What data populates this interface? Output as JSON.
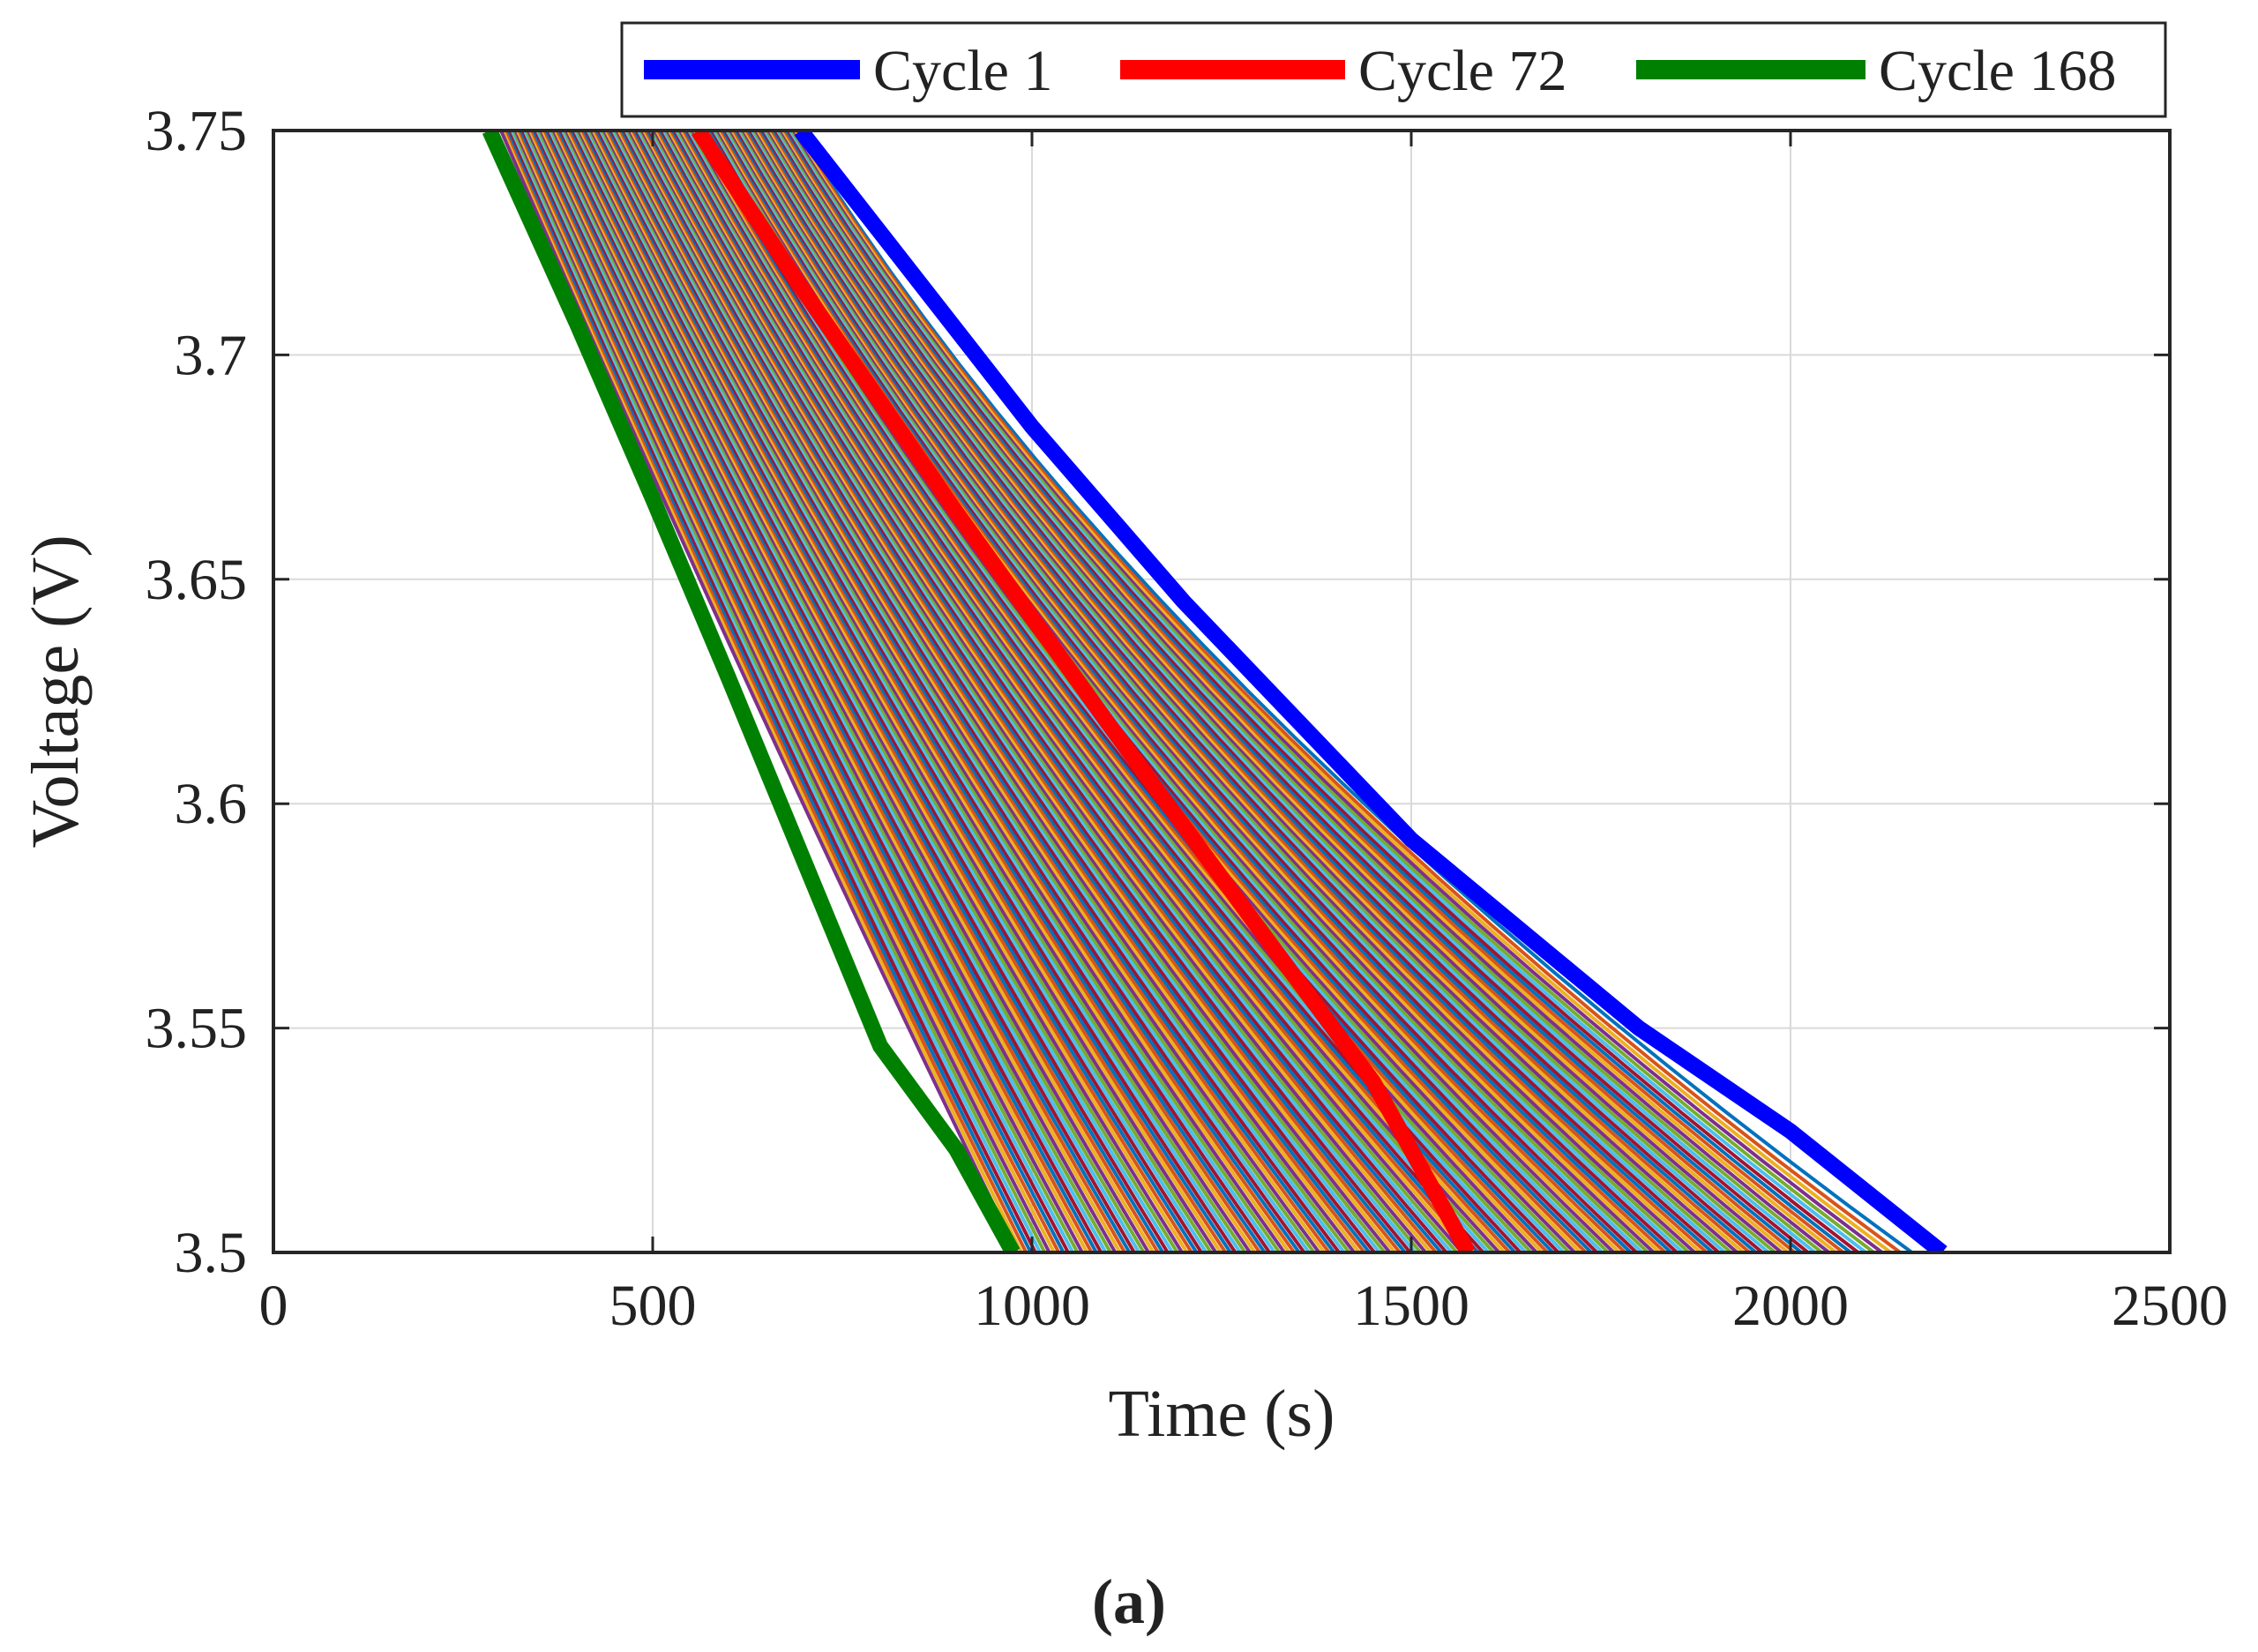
{
  "chart_data": {
    "type": "line",
    "title": "",
    "xlabel": "Time (s)",
    "ylabel": "Voltage (V)",
    "xlim": [
      0,
      2500
    ],
    "ylim": [
      3.5,
      3.75
    ],
    "xticks": [
      0,
      500,
      1000,
      1500,
      2000,
      2500
    ],
    "xtick_labels": [
      "0",
      "500",
      "1000",
      "1500",
      "2000",
      "2500"
    ],
    "yticks": [
      3.5,
      3.55,
      3.6,
      3.65,
      3.7,
      3.75
    ],
    "ytick_labels": [
      "3.5",
      "3.55",
      "3.6",
      "3.65",
      "3.7",
      "3.75"
    ],
    "grid": true,
    "legend_position": "top-right, outside axes",
    "series": [
      {
        "name": "Cycle 1",
        "color": "#0000ff",
        "x": [
          695,
          1000,
          1200,
          1500,
          1800,
          2000,
          2200
        ],
        "y": [
          3.75,
          3.684,
          3.645,
          3.592,
          3.55,
          3.527,
          3.5
        ]
      },
      {
        "name": "Cycle 72",
        "color": "#ff0000",
        "x": [
          560,
          700,
          900,
          1100,
          1300,
          1450,
          1575
        ],
        "y": [
          3.75,
          3.714,
          3.665,
          3.618,
          3.572,
          3.538,
          3.5
        ]
      },
      {
        "name": "Cycle 168",
        "color": "#008000",
        "x": [
          285,
          400,
          500,
          600,
          700,
          800,
          900,
          975
        ],
        "y": [
          3.75,
          3.707,
          3.668,
          3.628,
          3.587,
          3.546,
          3.523,
          3.5
        ]
      }
    ],
    "background_cycles": {
      "count": 165,
      "note": "unlabeled intermediate cycles drawn with default line colors between Cycle 168 and Cycle 1",
      "start_time_range": [
        300,
        690
      ],
      "end_time_range": [
        980,
        2160
      ]
    }
  },
  "caption": "(a)"
}
